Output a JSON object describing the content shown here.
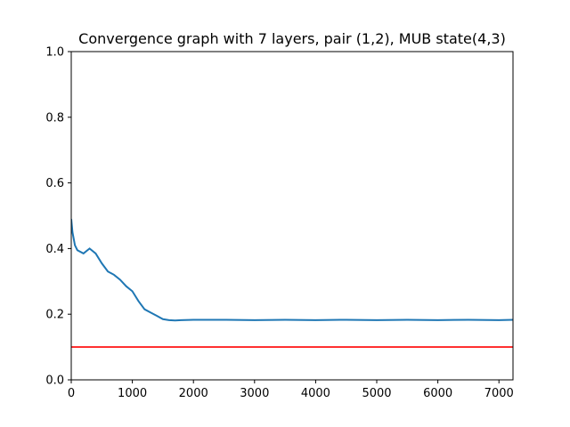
{
  "chart_data": {
    "type": "line",
    "title": "Convergence graph with 7 layers, pair (1,2), MUB state(4,3)",
    "xlabel": "",
    "ylabel": "",
    "xlim": [
      0,
      7230
    ],
    "ylim": [
      0,
      1.0
    ],
    "x_ticks": [
      0,
      1000,
      2000,
      3000,
      4000,
      5000,
      6000,
      7000
    ],
    "y_ticks": [
      0.0,
      0.2,
      0.4,
      0.6,
      0.8,
      1.0
    ],
    "x_tick_labels": [
      "0",
      "1000",
      "2000",
      "3000",
      "4000",
      "5000",
      "6000",
      "7000"
    ],
    "y_tick_labels": [
      "0.0",
      "0.2",
      "0.4",
      "0.6",
      "0.8",
      "1.0"
    ],
    "grid": false,
    "series": [
      {
        "color": "#1f77b4",
        "x": [
          0,
          20,
          60,
          100,
          200,
          300,
          400,
          500,
          600,
          700,
          800,
          900,
          1000,
          1100,
          1200,
          1300,
          1400,
          1500,
          1600,
          1700,
          1800,
          2000,
          2500,
          3000,
          3500,
          4000,
          4500,
          5000,
          5500,
          6000,
          6500,
          7000,
          7230
        ],
        "values": [
          0.49,
          0.45,
          0.41,
          0.395,
          0.385,
          0.4,
          0.385,
          0.355,
          0.33,
          0.32,
          0.305,
          0.285,
          0.27,
          0.24,
          0.215,
          0.205,
          0.195,
          0.185,
          0.182,
          0.181,
          0.182,
          0.183,
          0.183,
          0.182,
          0.183,
          0.182,
          0.183,
          0.182,
          0.183,
          0.182,
          0.183,
          0.182,
          0.183
        ]
      },
      {
        "color": "#ff0000",
        "x": [
          0,
          7230
        ],
        "values": [
          0.1,
          0.1
        ]
      }
    ]
  }
}
